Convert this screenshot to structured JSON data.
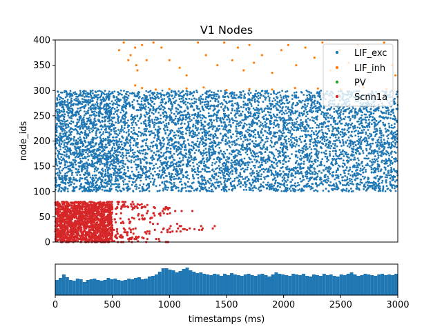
{
  "chart_data": [
    {
      "type": "scatter",
      "title": "V1 Nodes",
      "xlabel": "",
      "ylabel": "node_ids",
      "xlim": [
        0,
        3000
      ],
      "ylim": [
        0,
        400
      ],
      "yticks": [
        0,
        50,
        100,
        150,
        200,
        250,
        300,
        350,
        400
      ],
      "legend": {
        "placement": "top-right",
        "entries": [
          "LIF_exc",
          "LIF_inh",
          "PV",
          "Scnn1a"
        ]
      },
      "series": [
        {
          "name": "LIF_exc",
          "color": "#1f77b4",
          "node_range": [
            100,
            300
          ],
          "bursts": [
            {
              "t_range": [
                0,
                490
              ],
              "rate": "sparse"
            },
            {
              "t_range": [
                490,
                3000
              ],
              "rate": "dense"
            }
          ]
        },
        {
          "name": "LIF_inh",
          "color": "#ff7f0e",
          "node_range": [
            300,
            400
          ],
          "points": [
            [
              560,
              380
            ],
            [
              600,
              395
            ],
            [
              640,
              360
            ],
            [
              660,
              370
            ],
            [
              700,
              385
            ],
            [
              710,
              350
            ],
            [
              720,
              340
            ],
            [
              760,
              390
            ],
            [
              800,
              360
            ],
            [
              860,
              395
            ],
            [
              930,
              385
            ],
            [
              1000,
              360
            ],
            [
              1090,
              345
            ],
            [
              1150,
              330
            ],
            [
              1250,
              395
            ],
            [
              1320,
              370
            ],
            [
              1420,
              350
            ],
            [
              1480,
              395
            ],
            [
              1550,
              360
            ],
            [
              1600,
              385
            ],
            [
              1650,
              340
            ],
            [
              1700,
              390
            ],
            [
              1740,
              355
            ],
            [
              1810,
              370
            ],
            [
              1900,
              335
            ],
            [
              1980,
              380
            ],
            [
              2040,
              390
            ],
            [
              2110,
              350
            ],
            [
              2190,
              385
            ],
            [
              2270,
              365
            ],
            [
              2340,
              395
            ],
            [
              2410,
              340
            ],
            [
              2490,
              380
            ],
            [
              2570,
              355
            ],
            [
              2650,
              390
            ],
            [
              2720,
              345
            ],
            [
              2800,
              375
            ],
            [
              2880,
              395
            ],
            [
              2950,
              350
            ],
            [
              2980,
              330
            ],
            [
              700,
              310
            ],
            [
              760,
              305
            ],
            [
              880,
              302
            ],
            [
              1000,
              303
            ],
            [
              1150,
              304
            ],
            [
              1300,
              306
            ],
            [
              1500,
              301
            ],
            [
              1700,
              303
            ],
            [
              1900,
              302
            ],
            [
              2100,
              305
            ],
            [
              2300,
              304
            ],
            [
              2500,
              302
            ],
            [
              2700,
              306
            ],
            [
              2900,
              303
            ]
          ]
        },
        {
          "name": "PV",
          "color": "#2ca02c",
          "node_range": null
        },
        {
          "name": "Scnn1a",
          "color": "#d62728",
          "node_range": [
            0,
            80
          ],
          "rows_extent": [
            [
              0,
              1100
            ],
            [
              10,
              800
            ],
            [
              20,
              1050
            ],
            [
              30,
              1680
            ],
            [
              40,
              750
            ],
            [
              50,
              900
            ],
            [
              60,
              1300
            ],
            [
              70,
              1000
            ],
            [
              80,
              700
            ]
          ]
        }
      ]
    },
    {
      "type": "bar",
      "title": "",
      "xlabel": "timestamps (ms)",
      "ylabel": "",
      "xlim": [
        0,
        3000
      ],
      "xticks": [
        0,
        500,
        1000,
        1500,
        2000,
        2500,
        3000
      ],
      "bin_width": 30,
      "color": "#1f77b4",
      "values": [
        22,
        25,
        30,
        26,
        22,
        21,
        24,
        23,
        19,
        22,
        23,
        24,
        22,
        21,
        22,
        25,
        23,
        24,
        22,
        21,
        22,
        24,
        23,
        25,
        26,
        23,
        24,
        27,
        28,
        30,
        34,
        39,
        39,
        37,
        36,
        33,
        35,
        38,
        40,
        36,
        34,
        32,
        33,
        31,
        30,
        29,
        31,
        30,
        28,
        31,
        29,
        32,
        30,
        29,
        28,
        30,
        31,
        29,
        28,
        30,
        31,
        29,
        27,
        30,
        33,
        31,
        30,
        29,
        28,
        31,
        30,
        29,
        31,
        28,
        27,
        30,
        29,
        28,
        31,
        29,
        30,
        28,
        27,
        30,
        29,
        31,
        33,
        30,
        28,
        29,
        31,
        30,
        29,
        28,
        30,
        31,
        29,
        30,
        29,
        31
      ],
      "ylim": [
        0,
        45
      ]
    }
  ]
}
